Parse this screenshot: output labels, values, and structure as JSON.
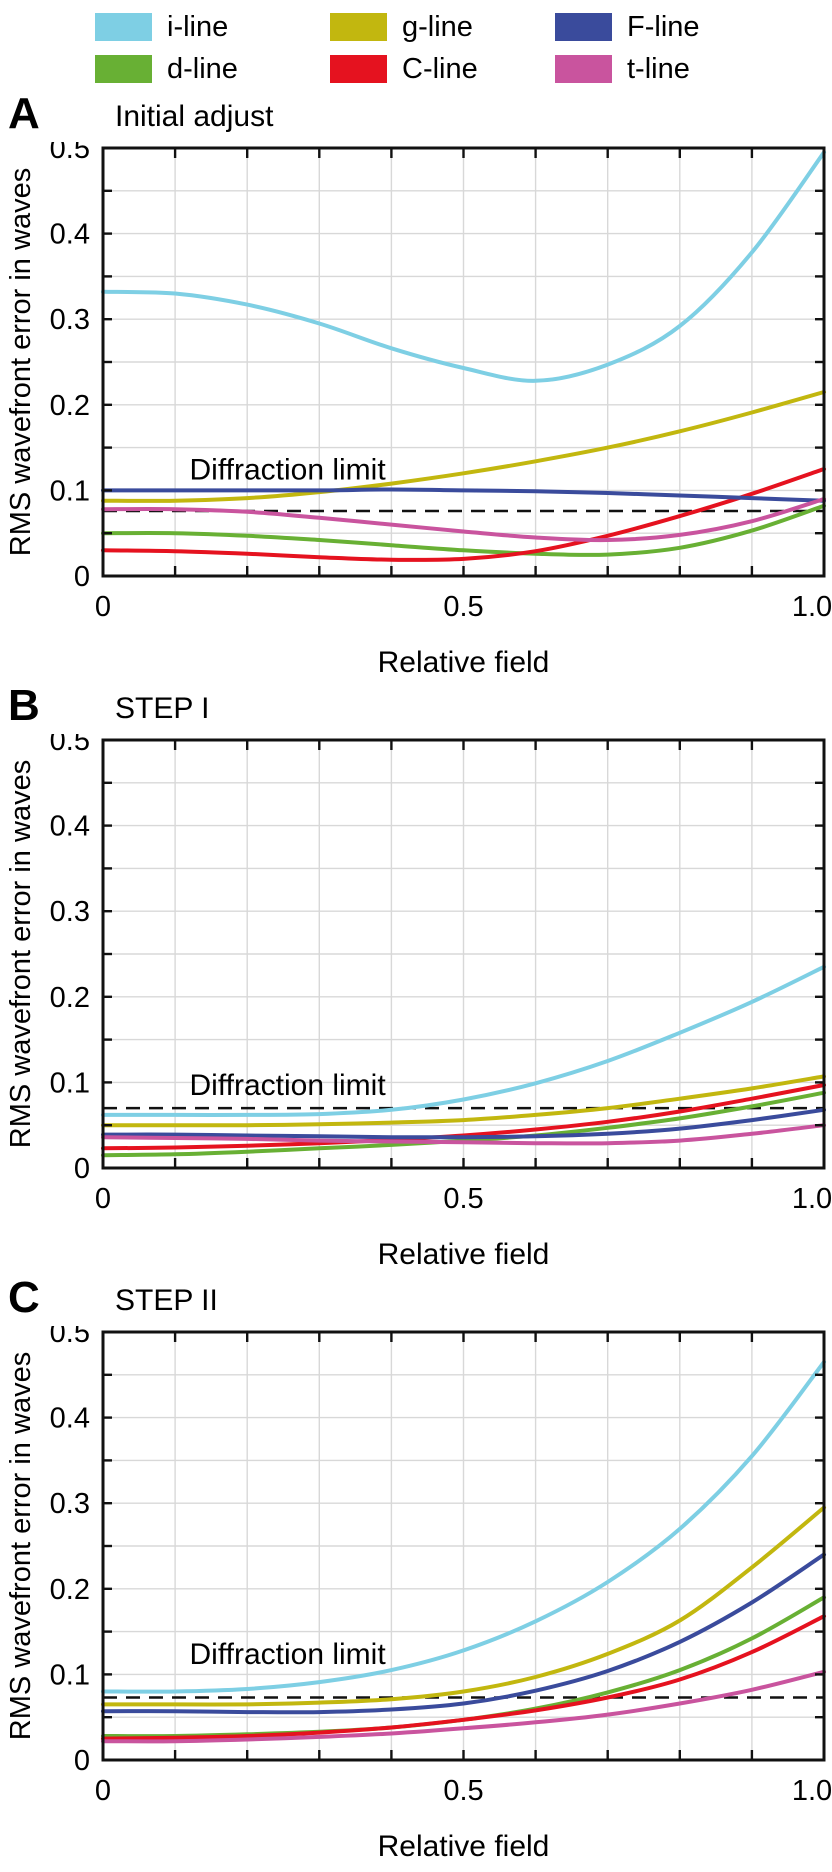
{
  "legend": {
    "items": [
      {
        "label": "i-line",
        "color": "#7ecfe4"
      },
      {
        "label": "g-line",
        "color": "#c2b70f"
      },
      {
        "label": "F-line",
        "color": "#3a4b9c"
      },
      {
        "label": "d-line",
        "color": "#68b034"
      },
      {
        "label": "C-line",
        "color": "#e5121f"
      },
      {
        "label": "t-line",
        "color": "#c9549e"
      }
    ]
  },
  "axis_style": {
    "grid_color": "#d8d8d8",
    "axis_color": "#111111",
    "dash_color": "#111111"
  },
  "chart_data": [
    {
      "type": "line",
      "panel_letter": "A",
      "title": "Initial adjust",
      "xlabel": "Relative field",
      "ylabel": "RMS wavefront error in waves",
      "xlim": [
        0,
        1
      ],
      "ylim": [
        0,
        0.5
      ],
      "xticks": [
        {
          "v": 0,
          "label": "0"
        },
        {
          "v": 0.5,
          "label": "0.5"
        },
        {
          "v": 1,
          "label": "1.0"
        }
      ],
      "yticks": [
        {
          "v": 0,
          "label": "0"
        },
        {
          "v": 0.1,
          "label": "0.1"
        },
        {
          "v": 0.2,
          "label": "0.2"
        },
        {
          "v": 0.3,
          "label": "0.3"
        },
        {
          "v": 0.4,
          "label": "0.4"
        },
        {
          "v": 0.5,
          "label": "0.5"
        }
      ],
      "x_minor_step": 0.1,
      "y_minor_step": 0.05,
      "grid_on": true,
      "legend_position": "top-shared",
      "annotation": {
        "text": "Diffraction limit",
        "x": 0.12,
        "y": 0.113
      },
      "diffraction_limit": 0.076,
      "x": [
        0,
        0.1,
        0.2,
        0.3,
        0.4,
        0.5,
        0.6,
        0.7,
        0.8,
        0.9,
        1.0
      ],
      "series": [
        {
          "name": "i-line",
          "color": "#7ecfe4",
          "values": [
            0.332,
            0.33,
            0.317,
            0.295,
            0.266,
            0.243,
            0.228,
            0.247,
            0.292,
            0.378,
            0.495
          ]
        },
        {
          "name": "g-line",
          "color": "#c2b70f",
          "values": [
            0.088,
            0.088,
            0.091,
            0.098,
            0.108,
            0.12,
            0.134,
            0.15,
            0.169,
            0.191,
            0.215
          ]
        },
        {
          "name": "d-line",
          "color": "#68b034",
          "values": [
            0.05,
            0.05,
            0.047,
            0.042,
            0.036,
            0.03,
            0.026,
            0.025,
            0.033,
            0.053,
            0.082
          ]
        },
        {
          "name": "C-line",
          "color": "#e5121f",
          "values": [
            0.03,
            0.029,
            0.026,
            0.022,
            0.019,
            0.02,
            0.029,
            0.047,
            0.07,
            0.096,
            0.125
          ]
        },
        {
          "name": "F-line",
          "color": "#3a4b9c",
          "values": [
            0.1,
            0.1,
            0.1,
            0.1,
            0.101,
            0.1,
            0.099,
            0.097,
            0.094,
            0.091,
            0.088
          ]
        },
        {
          "name": "t-line",
          "color": "#c9549e",
          "values": [
            0.078,
            0.078,
            0.075,
            0.068,
            0.06,
            0.052,
            0.045,
            0.042,
            0.048,
            0.064,
            0.09
          ]
        }
      ]
    },
    {
      "type": "line",
      "panel_letter": "B",
      "title": "STEP I",
      "xlabel": "Relative field",
      "ylabel": "RMS wavefront error in waves",
      "xlim": [
        0,
        1
      ],
      "ylim": [
        0,
        0.5
      ],
      "xticks": [
        {
          "v": 0,
          "label": "0"
        },
        {
          "v": 0.5,
          "label": "0.5"
        },
        {
          "v": 1,
          "label": "1.0"
        }
      ],
      "yticks": [
        {
          "v": 0,
          "label": "0"
        },
        {
          "v": 0.1,
          "label": "0.1"
        },
        {
          "v": 0.2,
          "label": "0.2"
        },
        {
          "v": 0.3,
          "label": "0.3"
        },
        {
          "v": 0.4,
          "label": "0.4"
        },
        {
          "v": 0.5,
          "label": "0.5"
        }
      ],
      "x_minor_step": 0.1,
      "y_minor_step": 0.05,
      "grid_on": true,
      "legend_position": "top-shared",
      "annotation": {
        "text": "Diffraction limit",
        "x": 0.12,
        "y": 0.085
      },
      "diffraction_limit": 0.07,
      "x": [
        0,
        0.1,
        0.2,
        0.3,
        0.4,
        0.5,
        0.6,
        0.7,
        0.8,
        0.9,
        1.0
      ],
      "series": [
        {
          "name": "i-line",
          "color": "#7ecfe4",
          "values": [
            0.062,
            0.062,
            0.062,
            0.063,
            0.068,
            0.08,
            0.099,
            0.125,
            0.158,
            0.194,
            0.235
          ]
        },
        {
          "name": "g-line",
          "color": "#c2b70f",
          "values": [
            0.05,
            0.05,
            0.05,
            0.051,
            0.053,
            0.056,
            0.062,
            0.07,
            0.081,
            0.093,
            0.107
          ]
        },
        {
          "name": "d-line",
          "color": "#68b034",
          "values": [
            0.015,
            0.016,
            0.019,
            0.023,
            0.027,
            0.032,
            0.038,
            0.047,
            0.058,
            0.072,
            0.088
          ]
        },
        {
          "name": "C-line",
          "color": "#e5121f",
          "values": [
            0.023,
            0.024,
            0.026,
            0.029,
            0.033,
            0.038,
            0.045,
            0.054,
            0.066,
            0.081,
            0.097
          ]
        },
        {
          "name": "F-line",
          "color": "#3a4b9c",
          "values": [
            0.039,
            0.039,
            0.038,
            0.037,
            0.036,
            0.036,
            0.037,
            0.04,
            0.046,
            0.056,
            0.068
          ]
        },
        {
          "name": "t-line",
          "color": "#c9549e",
          "values": [
            0.036,
            0.035,
            0.034,
            0.032,
            0.031,
            0.03,
            0.029,
            0.029,
            0.032,
            0.04,
            0.05
          ]
        }
      ]
    },
    {
      "type": "line",
      "panel_letter": "C",
      "title": "STEP II",
      "xlabel": "Relative field",
      "ylabel": "RMS wavefront error in waves",
      "xlim": [
        0,
        1
      ],
      "ylim": [
        0,
        0.5
      ],
      "xticks": [
        {
          "v": 0,
          "label": "0"
        },
        {
          "v": 0.5,
          "label": "0.5"
        },
        {
          "v": 1,
          "label": "1.0"
        }
      ],
      "yticks": [
        {
          "v": 0,
          "label": "0"
        },
        {
          "v": 0.1,
          "label": "0.1"
        },
        {
          "v": 0.2,
          "label": "0.2"
        },
        {
          "v": 0.3,
          "label": "0.3"
        },
        {
          "v": 0.4,
          "label": "0.4"
        },
        {
          "v": 0.5,
          "label": "0.5"
        }
      ],
      "x_minor_step": 0.1,
      "y_minor_step": 0.05,
      "grid_on": true,
      "legend_position": "top-shared",
      "annotation": {
        "text": "Diffraction limit",
        "x": 0.12,
        "y": 0.112
      },
      "diffraction_limit": 0.073,
      "x": [
        0,
        0.1,
        0.2,
        0.3,
        0.4,
        0.5,
        0.6,
        0.7,
        0.8,
        0.9,
        1.0
      ],
      "series": [
        {
          "name": "i-line",
          "color": "#7ecfe4",
          "values": [
            0.08,
            0.08,
            0.083,
            0.091,
            0.105,
            0.128,
            0.162,
            0.208,
            0.27,
            0.355,
            0.465
          ]
        },
        {
          "name": "g-line",
          "color": "#c2b70f",
          "values": [
            0.065,
            0.065,
            0.065,
            0.067,
            0.071,
            0.08,
            0.097,
            0.124,
            0.163,
            0.225,
            0.295
          ]
        },
        {
          "name": "d-line",
          "color": "#68b034",
          "values": [
            0.028,
            0.028,
            0.03,
            0.033,
            0.038,
            0.047,
            0.06,
            0.079,
            0.105,
            0.142,
            0.19
          ]
        },
        {
          "name": "C-line",
          "color": "#e5121f",
          "values": [
            0.025,
            0.026,
            0.028,
            0.032,
            0.038,
            0.047,
            0.058,
            0.073,
            0.094,
            0.126,
            0.168
          ]
        },
        {
          "name": "F-line",
          "color": "#3a4b9c",
          "values": [
            0.057,
            0.057,
            0.056,
            0.056,
            0.059,
            0.066,
            0.081,
            0.104,
            0.138,
            0.184,
            0.24
          ]
        },
        {
          "name": "t-line",
          "color": "#c9549e",
          "values": [
            0.022,
            0.022,
            0.024,
            0.027,
            0.031,
            0.037,
            0.044,
            0.053,
            0.066,
            0.082,
            0.103
          ]
        }
      ]
    }
  ]
}
